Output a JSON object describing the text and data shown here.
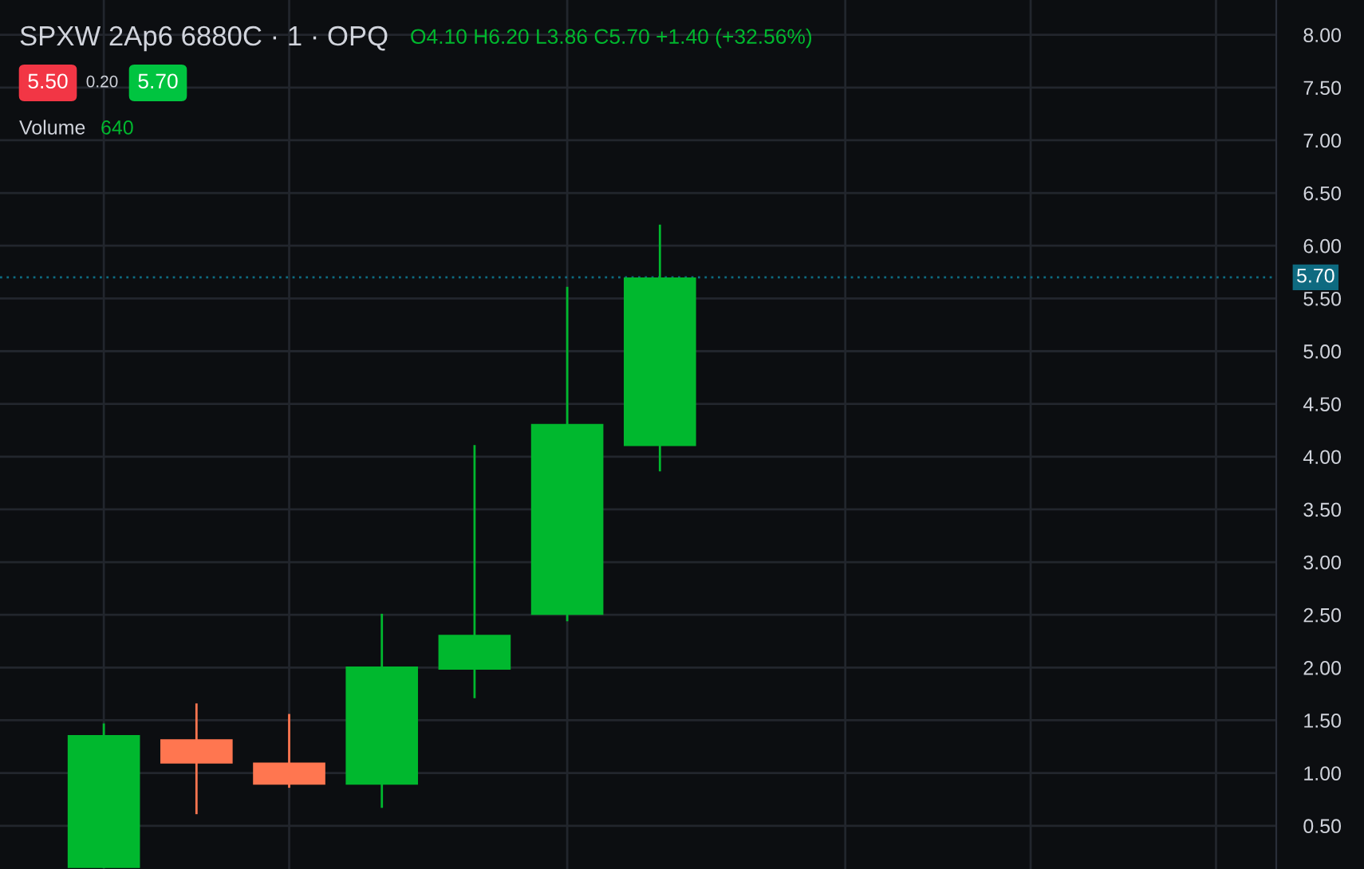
{
  "chart_data": {
    "type": "candlestick",
    "title": "SPXW 2Ap6 6880C · 1 · OPQ",
    "categories": [
      null,
      null,
      null,
      null,
      null,
      null,
      null,
      null,
      null,
      null,
      null,
      null,
      null
    ],
    "ohlc": [
      [
        0.1,
        1.47,
        0.1,
        1.36
      ],
      [
        1.32,
        1.66,
        0.61,
        1.09
      ],
      [
        1.1,
        1.56,
        0.86,
        0.89
      ],
      [
        0.89,
        2.51,
        0.67,
        2.01
      ],
      [
        1.98,
        4.11,
        1.71,
        2.31
      ],
      [
        2.5,
        5.61,
        2.44,
        4.31
      ],
      [
        4.1,
        6.2,
        3.86,
        5.7
      ],
      null,
      null,
      null,
      null,
      null,
      null
    ],
    "colors": [
      "#00b82e",
      "#ff7650",
      "#ff7650",
      "#00b82e",
      "#00b82e",
      "#00b82e",
      "#00b82e",
      null,
      null,
      null,
      null,
      null,
      null
    ],
    "ylim": [
      0.09,
      8.33
    ],
    "yticks": [
      {
        "value": 0.5,
        "label": "0.50"
      },
      {
        "value": 1,
        "label": "1.00"
      },
      {
        "value": 1.5,
        "label": "1.50"
      },
      {
        "value": 2,
        "label": "2.00"
      },
      {
        "value": 2.5,
        "label": "2.50"
      },
      {
        "value": 3,
        "label": "3.00"
      },
      {
        "value": 3.5,
        "label": "3.50"
      },
      {
        "value": 4,
        "label": "4.00"
      },
      {
        "value": 4.5,
        "label": "4.50"
      },
      {
        "value": 5,
        "label": "5.00"
      },
      {
        "value": 5.5,
        "label": "5.50"
      },
      {
        "value": 6,
        "label": "6.00"
      },
      {
        "value": 6.5,
        "label": "6.50"
      },
      {
        "value": 7,
        "label": "7.00"
      },
      {
        "value": 7.5,
        "label": "7.50"
      },
      {
        "value": 8,
        "label": "8.00"
      }
    ],
    "tick_labels": "y",
    "grid": true,
    "ref_lines": [
      {
        "axis": "y",
        "value": 5.7,
        "label": "5.70",
        "color": "#0e6a80",
        "line_style": "dotted"
      }
    ],
    "annotations": [
      "O4.10 H6.20 L3.86 C5.70 +1.40 (+32.56%)",
      "5.50",
      "0.20",
      "5.70",
      "Volume",
      "640"
    ]
  }
}
